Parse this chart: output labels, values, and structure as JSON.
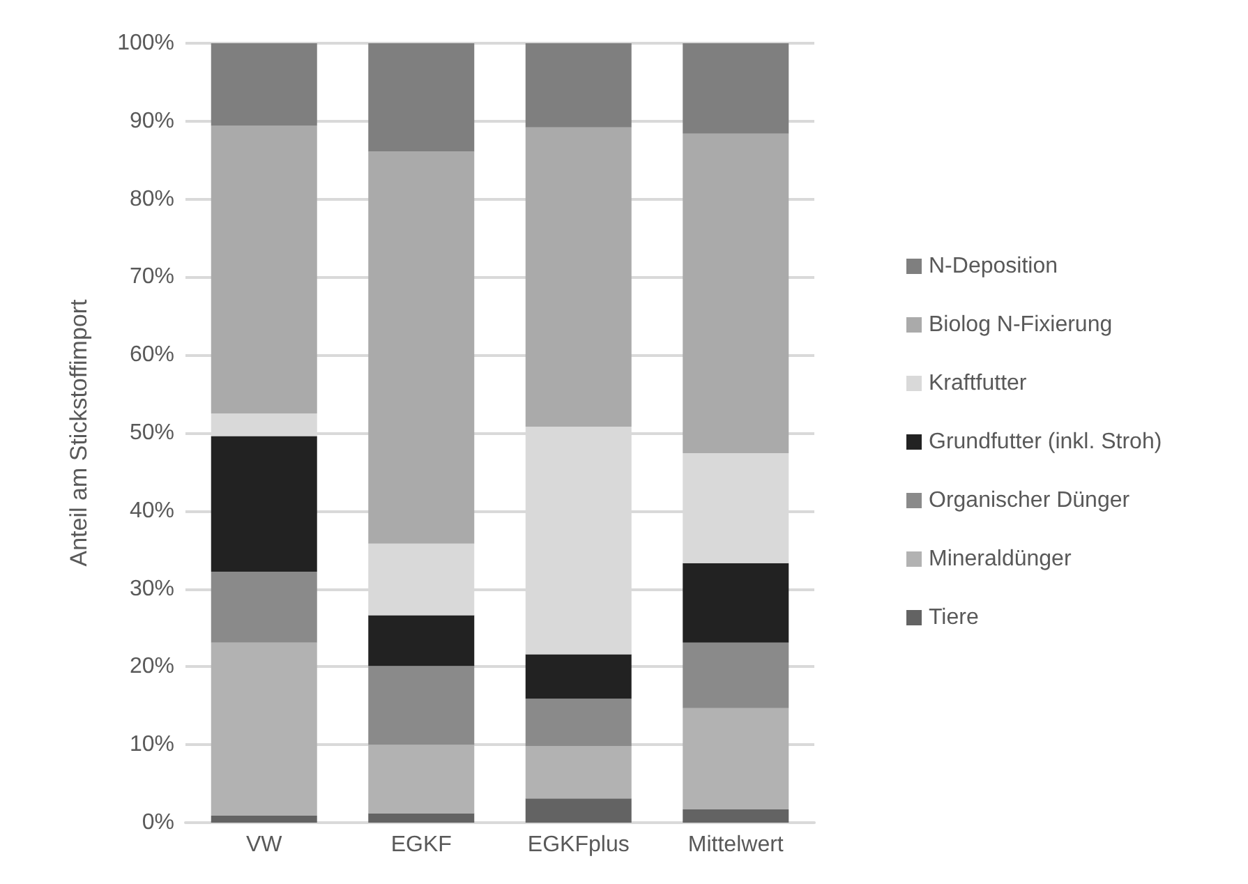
{
  "chart_data": {
    "type": "bar",
    "stacked": true,
    "ylabel": "Anteil am Stickstoffimport",
    "categories": [
      "VW",
      "EGKF",
      "EGKFplus",
      "Mittelwert"
    ],
    "series": [
      {
        "name": "Tiere",
        "color": "#636363",
        "values": [
          0.9,
          1.2,
          3.1,
          1.7
        ]
      },
      {
        "name": "Mineraldünger",
        "color": "#b2b2b2",
        "values": [
          22.2,
          8.8,
          6.7,
          13.0
        ]
      },
      {
        "name": "Organischer Dünger",
        "color": "#8a8a8a",
        "values": [
          9.1,
          10.1,
          6.1,
          8.4
        ]
      },
      {
        "name": "Grundfutter (inkl. Stroh)",
        "color": "#222222",
        "values": [
          17.4,
          6.5,
          5.7,
          10.2
        ]
      },
      {
        "name": "Kraftfutter",
        "color": "#d9d9d9",
        "values": [
          2.9,
          9.2,
          29.2,
          14.1
        ]
      },
      {
        "name": "Biolog N-Fixierung",
        "color": "#aaaaaa",
        "values": [
          36.9,
          50.3,
          38.4,
          41.0
        ]
      },
      {
        "name": "N-Deposition",
        "color": "#7f7f7f",
        "values": [
          10.6,
          13.9,
          10.8,
          11.6
        ]
      }
    ],
    "ylim": [
      0,
      100
    ],
    "yticks": [
      {
        "value": 0,
        "label": "0%"
      },
      {
        "value": 10,
        "label": "10%"
      },
      {
        "value": 20,
        "label": "20%"
      },
      {
        "value": 30,
        "label": "30%"
      },
      {
        "value": 40,
        "label": "40%"
      },
      {
        "value": 50,
        "label": "50%"
      },
      {
        "value": 60,
        "label": "60%"
      },
      {
        "value": 70,
        "label": "70%"
      },
      {
        "value": 80,
        "label": "80%"
      },
      {
        "value": 90,
        "label": "90%"
      },
      {
        "value": 100,
        "label": "100%"
      }
    ],
    "grid": "y",
    "legend": "right"
  }
}
